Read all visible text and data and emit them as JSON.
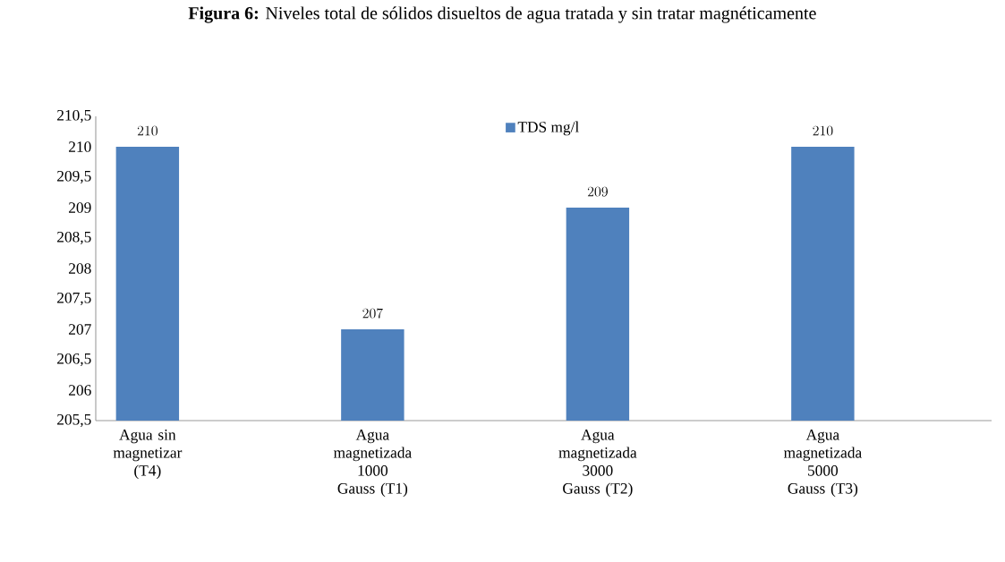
{
  "chart_data": {
    "type": "bar",
    "title": "**Figura 6:** Niveles total de sólidos disueltos de agua tratada y sin tratar magnéticamente",
    "categories": [
      "Agua sin magnetizar (T4)",
      "Agua magnetizada 1000 Gauss (T1)",
      "Agua magnetizada 3000 Gauss (T2)",
      "Agua magnetizada 5000 Gauss (T3)"
    ],
    "series": [
      {
        "name": "TDS mg/l",
        "color": "#4f81bd",
        "values": [
          210,
          207,
          209,
          210
        ]
      }
    ],
    "ylim": [
      205.5,
      210.5
    ],
    "yticks": [
      {
        "value": 205.5,
        "label": "205,5"
      },
      206,
      {
        "value": 206.5,
        "label": "206,5"
      },
      207,
      {
        "value": 207.5,
        "label": "207,5"
      },
      208,
      {
        "value": 208.5,
        "label": "208,5"
      },
      209,
      {
        "value": 209.5,
        "label": "209,5"
      },
      210,
      {
        "value": 210.5,
        "label": "210,5"
      }
    ],
    "data_labels": true,
    "legend": "top",
    "grid": false
  }
}
